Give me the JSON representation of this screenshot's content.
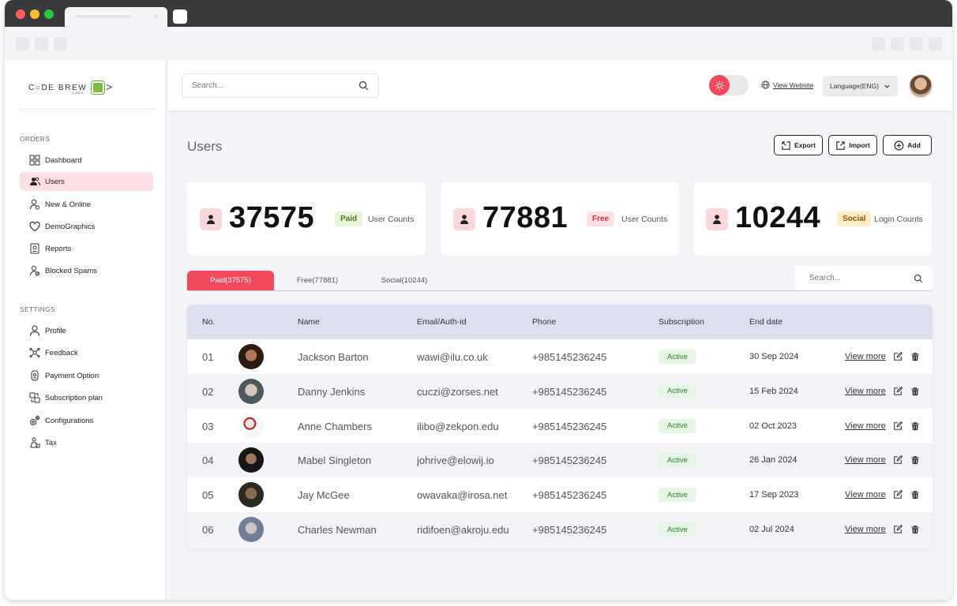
{
  "brand": {
    "logo_text": "C○DE BREW",
    "logo_sub": "LABS"
  },
  "sidebar": {
    "orders_label": "ORDERS",
    "settings_label": "SETTINGS",
    "orders_items": [
      {
        "label": "Dashboard",
        "icon": "dashboard-icon"
      },
      {
        "label": "Users",
        "icon": "users-icon",
        "active": true
      },
      {
        "label": "New & Online",
        "icon": "user-online-icon"
      },
      {
        "label": "DemoGraphics",
        "icon": "heart-icon"
      },
      {
        "label": "Reports",
        "icon": "report-icon"
      },
      {
        "label": "Blocked Spams",
        "icon": "blocked-user-icon"
      }
    ],
    "settings_items": [
      {
        "label": "Profile",
        "icon": "profile-icon"
      },
      {
        "label": "Feedback",
        "icon": "feedback-icon"
      },
      {
        "label": "Payment Option",
        "icon": "payment-icon"
      },
      {
        "label": "Subscription plan",
        "icon": "subscription-icon"
      },
      {
        "label": "Configurations",
        "icon": "configuration-icon"
      },
      {
        "label": "Tax",
        "icon": "tax-icon"
      }
    ]
  },
  "topbar": {
    "search_placeholder": "Search...",
    "view_website": "View Website",
    "language": "Language(ENG)"
  },
  "page": {
    "title": "Users",
    "actions": {
      "export": "Export",
      "import": "Import",
      "add": "Add"
    }
  },
  "cards": [
    {
      "count": "37575",
      "badge": "Paid",
      "label": "User Counts",
      "badge_bg": "#e6f5d8",
      "badge_color": "#4c7a1e"
    },
    {
      "count": "77881",
      "badge": "Free",
      "label": "User Counts",
      "badge_bg": "#fde0e3",
      "badge_color": "#d9323f"
    },
    {
      "count": "10244",
      "badge": "Social",
      "label": "Login Counts",
      "badge_bg": "#fdebc6",
      "badge_color": "#8a5a00"
    }
  ],
  "tabs": [
    "Paid(37575)",
    "Free(77881)",
    "Social(10244)"
  ],
  "table_search_placeholder": "Search...",
  "table": {
    "headers": [
      "No.",
      "Name",
      "Email/Auth-id",
      "Phone",
      "Subscription",
      "End date"
    ],
    "rows": [
      {
        "no": "01",
        "name": "Jackson Barton",
        "email": "wawi@ilu.co.uk",
        "phone": "+985145236245",
        "status": "Active",
        "end": "30 Sep 2024"
      },
      {
        "no": "02",
        "name": "Danny Jenkins",
        "email": "cuczi@zorses.net",
        "phone": "+985145236245",
        "status": "Active",
        "end": "15 Feb 2024"
      },
      {
        "no": "03",
        "name": "Anne Chambers",
        "email": "ilibo@zekpon.edu",
        "phone": "+985145236245",
        "status": "Active",
        "end": "02 Oct 2023"
      },
      {
        "no": "04",
        "name": "Mabel Singleton",
        "email": "johrive@elowij.io",
        "phone": "+985145236245",
        "status": "Active",
        "end": "26 Jan 2024"
      },
      {
        "no": "05",
        "name": "Jay McGee",
        "email": "owavaka@irosa.net",
        "phone": "+985145236245",
        "status": "Active",
        "end": "17 Sep 2023"
      },
      {
        "no": "06",
        "name": "Charles Newman",
        "email": "ridifoen@akroju.edu",
        "phone": "+985145236245",
        "status": "Active",
        "end": "02 Jul 2024"
      }
    ],
    "view_more": "View more"
  },
  "colors": {
    "accent": "#f24a5a",
    "active_nav": "#fde0e3",
    "header": "#dcdfee"
  }
}
